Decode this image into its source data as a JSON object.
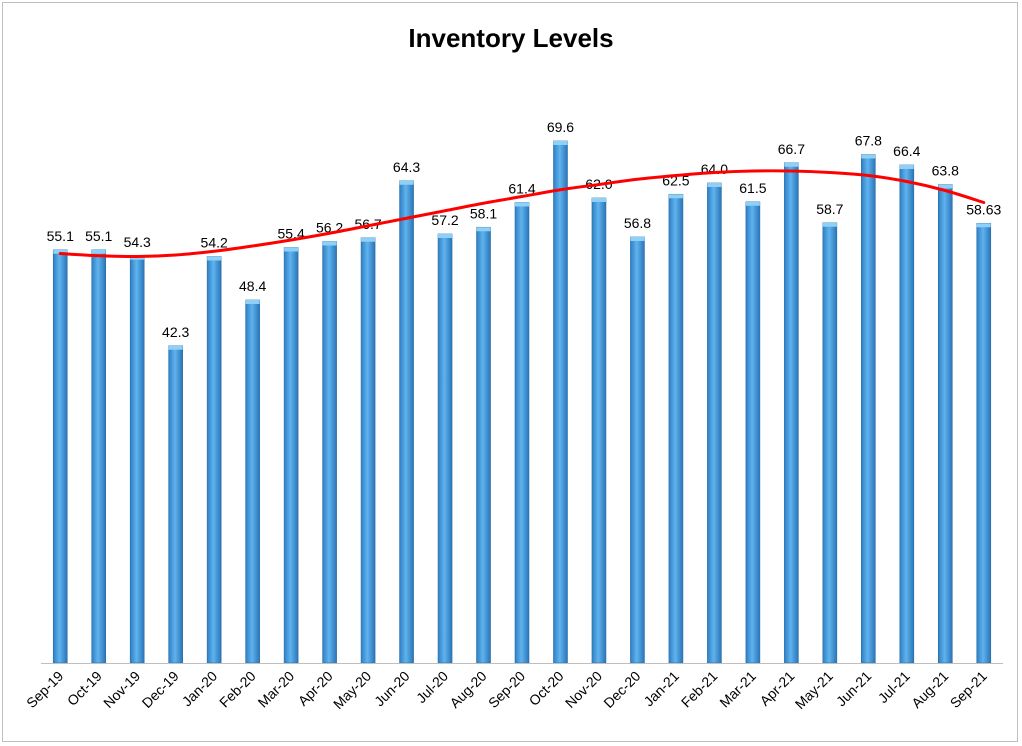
{
  "chart_data": {
    "type": "bar",
    "title": "Inventory Levels",
    "categories": [
      "Sep-19",
      "Oct-19",
      "Nov-19",
      "Dec-19",
      "Jan-20",
      "Feb-20",
      "Mar-20",
      "Apr-20",
      "May-20",
      "Jun-20",
      "Jul-20",
      "Aug-20",
      "Sep-20",
      "Oct-20",
      "Nov-20",
      "Dec-20",
      "Jan-21",
      "Feb-21",
      "Mar-21",
      "Apr-21",
      "May-21",
      "Jun-21",
      "Jul-21",
      "Aug-21",
      "Sep-21"
    ],
    "values": [
      55.1,
      55.1,
      54.3,
      42.3,
      54.2,
      48.4,
      55.4,
      56.2,
      56.7,
      64.3,
      57.2,
      58.1,
      61.4,
      69.6,
      62.0,
      56.8,
      62.5,
      64.0,
      61.5,
      66.7,
      58.7,
      67.8,
      66.4,
      63.8,
      58.63
    ],
    "value_labels": [
      "55.1",
      "55.1",
      "54.3",
      "42.3",
      "54.2",
      "48.4",
      "55.4",
      "56.2",
      "56.7",
      "64.3",
      "57.2",
      "58.1",
      "61.4",
      "69.6",
      "62.0",
      "56.8",
      "62.5",
      "64.0",
      "61.5",
      "66.7",
      "58.7",
      "67.8",
      "66.4",
      "63.8",
      "58.63"
    ],
    "trendline": {
      "type": "polynomial",
      "color": "#ff0000",
      "values": [
        54.6,
        54.3,
        54.2,
        54.4,
        54.9,
        55.6,
        56.4,
        57.3,
        58.3,
        59.3,
        60.3,
        61.3,
        62.2,
        63.1,
        63.8,
        64.5,
        65.0,
        65.4,
        65.6,
        65.6,
        65.4,
        65.0,
        64.2,
        63.0,
        61.4
      ]
    },
    "bar_color": "#4a9fde",
    "ylim": [
      0,
      75
    ],
    "xlabel": "",
    "ylabel": "",
    "grid": false,
    "legend": "none"
  }
}
